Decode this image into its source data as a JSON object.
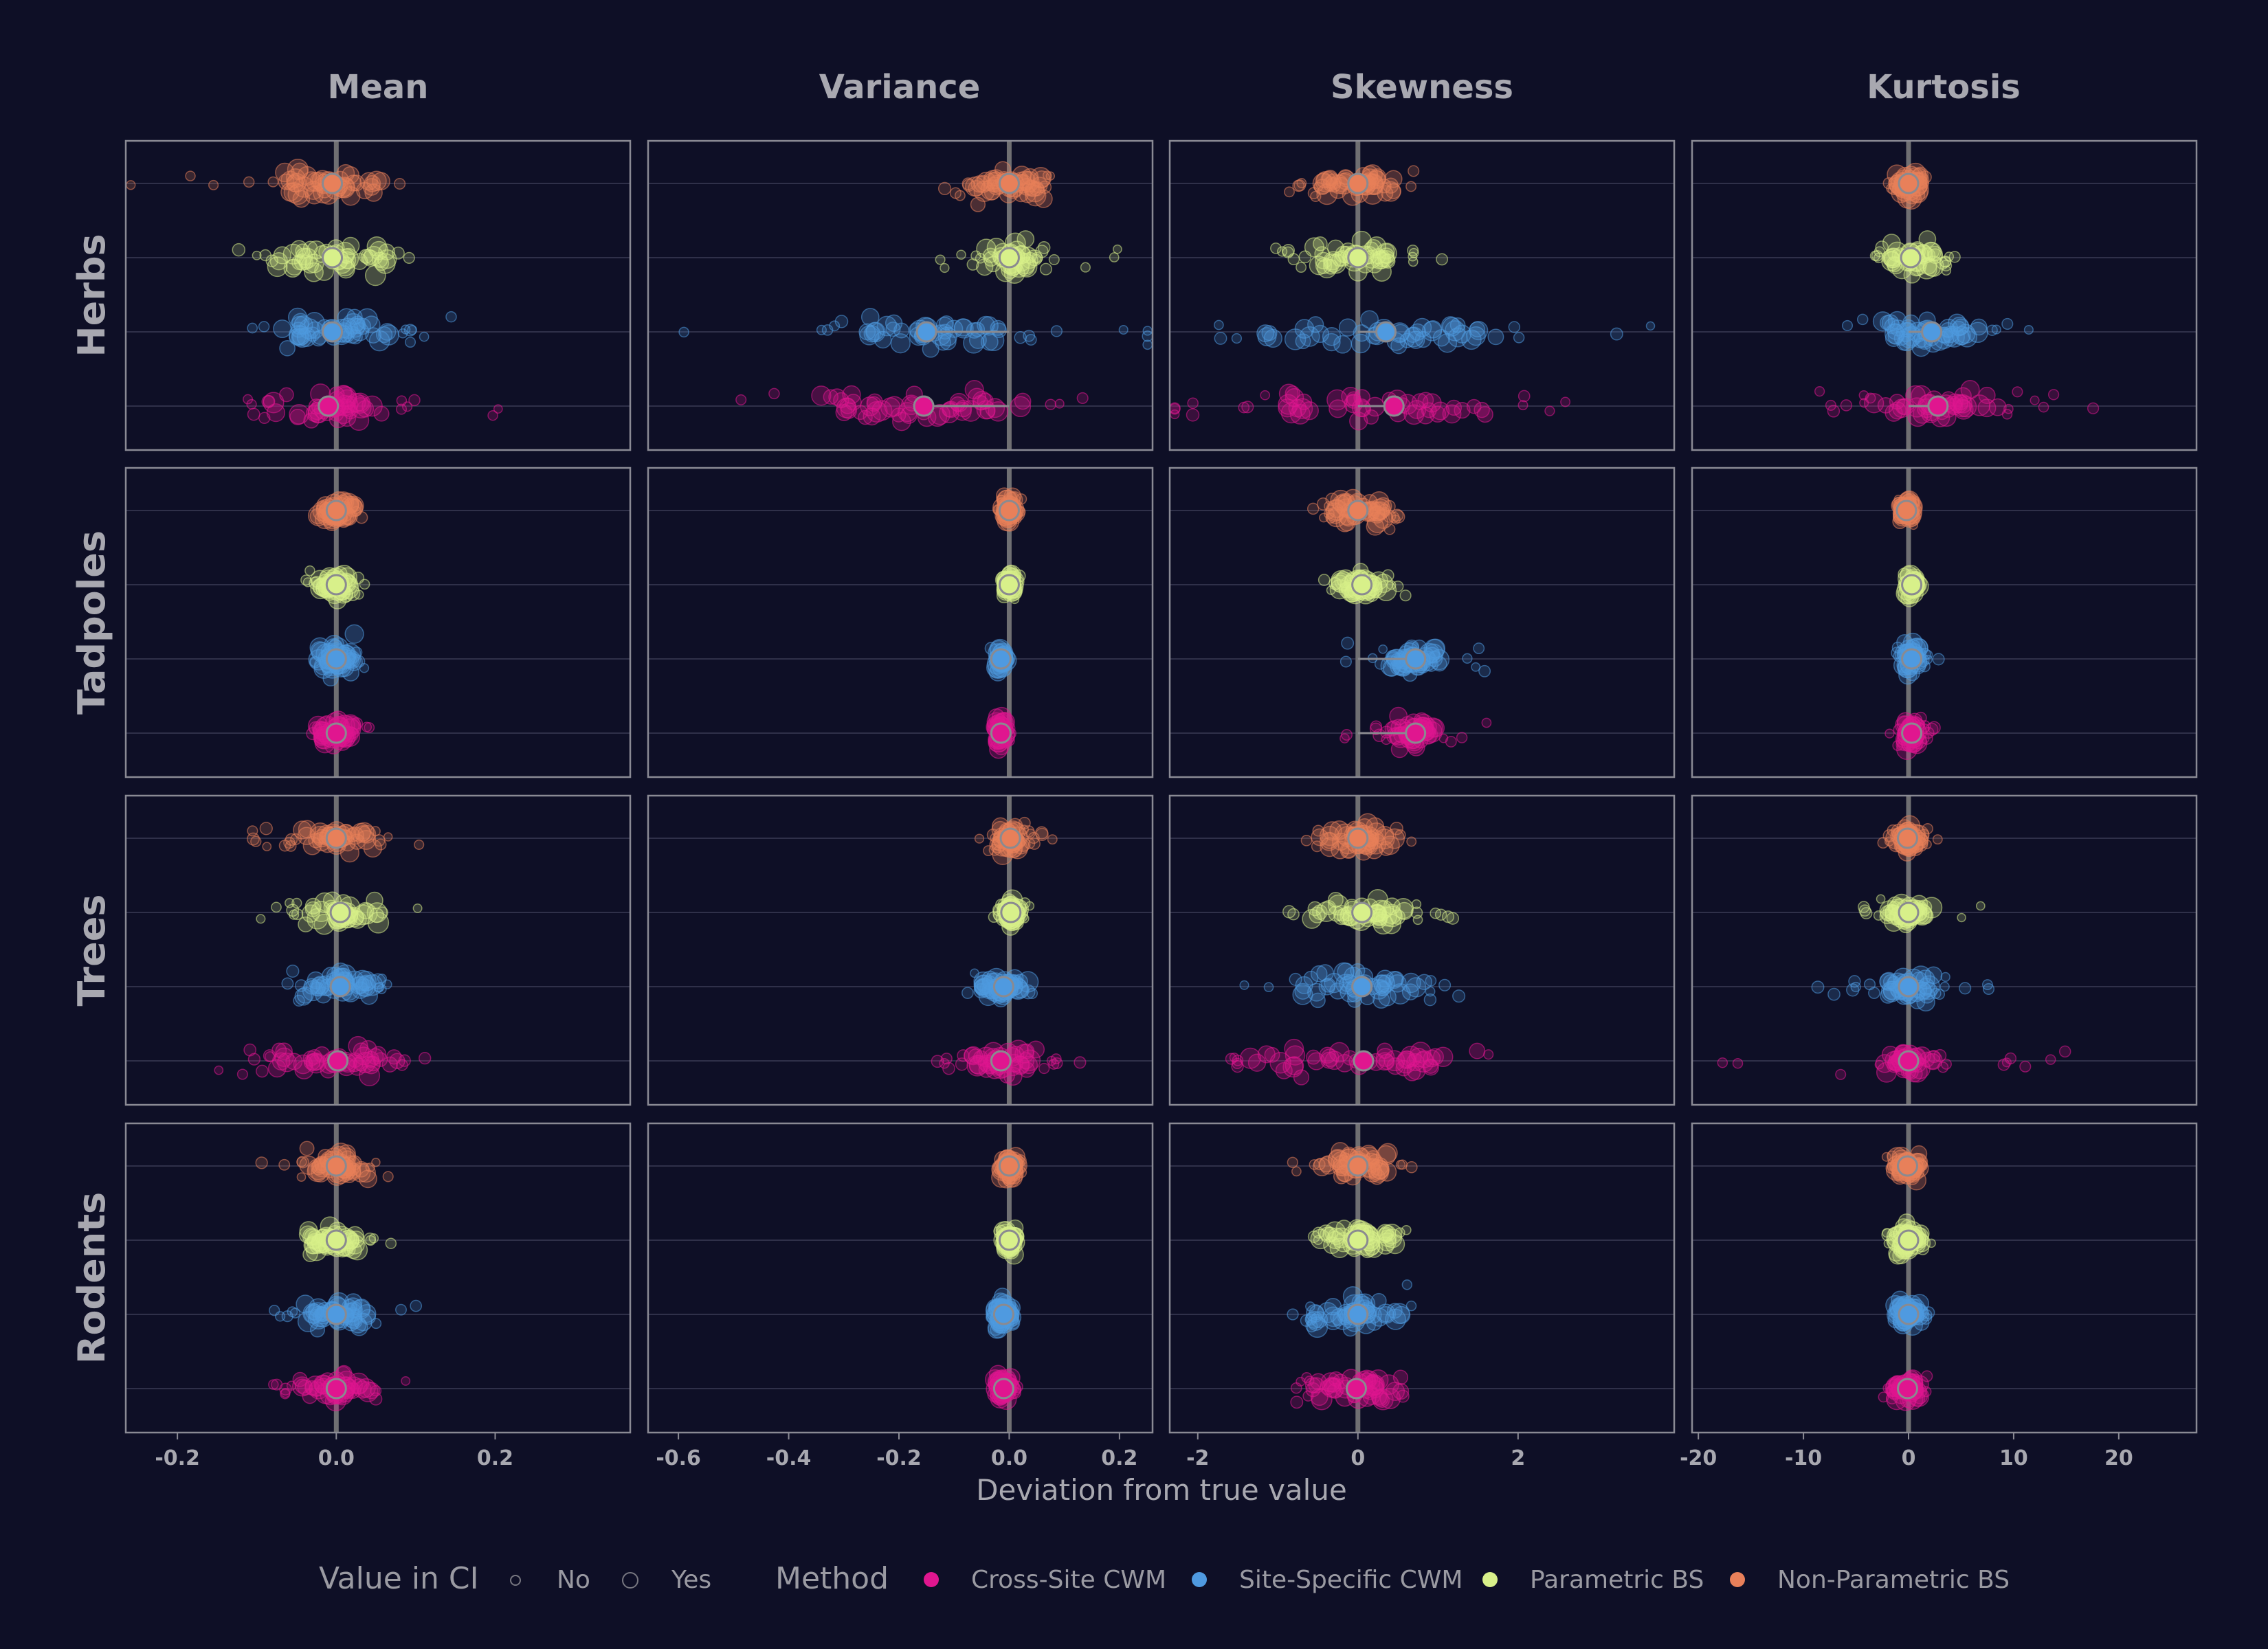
{
  "colors": {
    "background": "#0e0f26",
    "panel_border": "#8a8a94",
    "grid": "#3a3b55",
    "zero_line": "#6f6f72",
    "text": "#a8a8b0",
    "Cross-Site CWM": "#e0168f",
    "Site-Specific CWM": "#4f9ae0",
    "Parametric BS": "#d8f08a",
    "Non-Parametric BS": "#e8805a"
  },
  "chart_data": {
    "type": "scatter",
    "xlabel": "Deviation from true value",
    "columns": [
      {
        "name": "Mean",
        "xlim": [
          -0.265,
          0.37
        ],
        "ticks": [
          -0.2,
          0.0,
          0.2
        ],
        "tick_labels": [
          "-0.2",
          "0.0",
          "0.2"
        ]
      },
      {
        "name": "Variance",
        "xlim": [
          -0.655,
          0.26
        ],
        "ticks": [
          -0.6,
          -0.4,
          -0.2,
          0.0,
          0.2
        ],
        "tick_labels": [
          "-0.6",
          "-0.4",
          "-0.2",
          "0.0",
          "0.2"
        ]
      },
      {
        "name": "Skewness",
        "xlim": [
          -2.35,
          3.95
        ],
        "ticks": [
          -2,
          0,
          2
        ],
        "tick_labels": [
          "-2",
          "0",
          "2"
        ]
      },
      {
        "name": "Kurtosis",
        "xlim": [
          -20.6,
          27.4
        ],
        "ticks": [
          -20,
          -10,
          0,
          10,
          20
        ],
        "tick_labels": [
          "-20",
          "-10",
          "0",
          "10",
          "20"
        ]
      }
    ],
    "rows": [
      "Herbs",
      "Tadpoles",
      "Trees",
      "Rodents"
    ],
    "methods_top_to_bottom": [
      "Non-Parametric BS",
      "Parametric BS",
      "Site-Specific CWM",
      "Cross-Site CWM"
    ],
    "medians": {
      "Herbs": {
        "Mean": {
          "Non-Parametric BS": -0.005,
          "Parametric BS": -0.005,
          "Site-Specific CWM": -0.005,
          "Cross-Site CWM": -0.01
        },
        "Variance": {
          "Non-Parametric BS": 0.0,
          "Parametric BS": 0.0,
          "Site-Specific CWM": -0.15,
          "Cross-Site CWM": -0.155
        },
        "Skewness": {
          "Non-Parametric BS": 0.0,
          "Parametric BS": 0.0,
          "Site-Specific CWM": 0.35,
          "Cross-Site CWM": 0.45
        },
        "Kurtosis": {
          "Non-Parametric BS": 0.0,
          "Parametric BS": 0.2,
          "Site-Specific CWM": 2.2,
          "Cross-Site CWM": 2.8
        }
      },
      "Tadpoles": {
        "Mean": {
          "Non-Parametric BS": 0.0,
          "Parametric BS": 0.0,
          "Site-Specific CWM": 0.0,
          "Cross-Site CWM": 0.0
        },
        "Variance": {
          "Non-Parametric BS": 0.0,
          "Parametric BS": 0.0,
          "Site-Specific CWM": -0.015,
          "Cross-Site CWM": -0.015
        },
        "Skewness": {
          "Non-Parametric BS": 0.0,
          "Parametric BS": 0.05,
          "Site-Specific CWM": 0.72,
          "Cross-Site CWM": 0.72
        },
        "Kurtosis": {
          "Non-Parametric BS": -0.2,
          "Parametric BS": 0.3,
          "Site-Specific CWM": 0.3,
          "Cross-Site CWM": 0.3
        }
      },
      "Trees": {
        "Mean": {
          "Non-Parametric BS": 0.0,
          "Parametric BS": 0.005,
          "Site-Specific CWM": 0.005,
          "Cross-Site CWM": 0.002
        },
        "Variance": {
          "Non-Parametric BS": 0.002,
          "Parametric BS": 0.003,
          "Site-Specific CWM": -0.01,
          "Cross-Site CWM": -0.015
        },
        "Skewness": {
          "Non-Parametric BS": 0.0,
          "Parametric BS": 0.05,
          "Site-Specific CWM": 0.05,
          "Cross-Site CWM": 0.07
        },
        "Kurtosis": {
          "Non-Parametric BS": -0.1,
          "Parametric BS": 0.0,
          "Site-Specific CWM": 0.0,
          "Cross-Site CWM": 0.0
        }
      },
      "Rodents": {
        "Mean": {
          "Non-Parametric BS": 0.0,
          "Parametric BS": 0.0,
          "Site-Specific CWM": 0.0,
          "Cross-Site CWM": 0.0
        },
        "Variance": {
          "Non-Parametric BS": 0.0,
          "Parametric BS": 0.0,
          "Site-Specific CWM": -0.01,
          "Cross-Site CWM": -0.01
        },
        "Skewness": {
          "Non-Parametric BS": 0.0,
          "Parametric BS": 0.0,
          "Site-Specific CWM": 0.0,
          "Cross-Site CWM": -0.02
        },
        "Kurtosis": {
          "Non-Parametric BS": -0.1,
          "Parametric BS": 0.0,
          "Site-Specific CWM": 0.0,
          "Cross-Site CWM": -0.1
        }
      }
    },
    "spread": {
      "Herbs": {
        "Mean": {
          "Non-Parametric BS": [
            0.04,
            0.35
          ],
          "Parametric BS": [
            0.045,
            0.17
          ],
          "Site-Specific CWM": [
            0.05,
            0.17
          ],
          "Cross-Site CWM": [
            0.045,
            0.24
          ]
        },
        "Variance": {
          "Non-Parametric BS": [
            0.04,
            0.16
          ],
          "Parametric BS": [
            0.03,
            0.22
          ],
          "Site-Specific CWM": [
            0.09,
            0.58
          ],
          "Cross-Site CWM": [
            0.12,
            0.62
          ]
        },
        "Skewness": {
          "Non-Parametric BS": [
            0.3,
            0.8
          ],
          "Parametric BS": [
            0.4,
            0.9
          ],
          "Site-Specific CWM": [
            1.0,
            3.3
          ],
          "Cross-Site CWM": [
            1.0,
            3.7
          ]
        },
        "Kurtosis": {
          "Non-Parametric BS": [
            0.8,
            1.6
          ],
          "Parametric BS": [
            1.6,
            4.0
          ],
          "Site-Specific CWM": [
            3.0,
            15.0
          ],
          "Cross-Site CWM": [
            4.0,
            25.0
          ]
        }
      },
      "Tadpoles": {
        "Mean": {
          "Non-Parametric BS": [
            0.015,
            0.03
          ],
          "Parametric BS": [
            0.015,
            0.03
          ],
          "Site-Specific CWM": [
            0.015,
            0.03
          ],
          "Cross-Site CWM": [
            0.015,
            0.03
          ]
        },
        "Variance": {
          "Non-Parametric BS": [
            0.008,
            0.02
          ],
          "Parametric BS": [
            0.006,
            0.02
          ],
          "Site-Specific CWM": [
            0.006,
            0.02
          ],
          "Cross-Site CWM": [
            0.006,
            0.02
          ]
        },
        "Skewness": {
          "Non-Parametric BS": [
            0.2,
            0.5
          ],
          "Parametric BS": [
            0.2,
            0.4
          ],
          "Site-Specific CWM": [
            0.2,
            0.9
          ],
          "Cross-Site CWM": [
            0.2,
            0.9
          ]
        },
        "Kurtosis": {
          "Non-Parametric BS": [
            0.4,
            0.8
          ],
          "Parametric BS": [
            0.4,
            0.8
          ],
          "Site-Specific CWM": [
            0.5,
            3.0
          ],
          "Cross-Site CWM": [
            0.5,
            3.0
          ]
        }
      },
      "Trees": {
        "Mean": {
          "Non-Parametric BS": [
            0.03,
            0.11
          ],
          "Parametric BS": [
            0.03,
            0.11
          ],
          "Site-Specific CWM": [
            0.03,
            0.09
          ],
          "Cross-Site CWM": [
            0.05,
            0.13
          ]
        },
        "Variance": {
          "Non-Parametric BS": [
            0.015,
            0.08
          ],
          "Parametric BS": [
            0.01,
            0.04
          ],
          "Site-Specific CWM": [
            0.03,
            0.07
          ],
          "Cross-Site CWM": [
            0.04,
            0.12
          ]
        },
        "Skewness": {
          "Non-Parametric BS": [
            0.3,
            0.6
          ],
          "Parametric BS": [
            0.4,
            1.4
          ],
          "Site-Specific CWM": [
            0.5,
            1.8
          ],
          "Cross-Site CWM": [
            0.9,
            1.8
          ]
        },
        "Kurtosis": {
          "Non-Parametric BS": [
            0.8,
            3.0
          ],
          "Parametric BS": [
            1.5,
            8.0
          ],
          "Site-Specific CWM": [
            1.5,
            9.0
          ],
          "Cross-Site CWM": [
            1.5,
            19.0
          ]
        }
      },
      "Rodents": {
        "Mean": {
          "Non-Parametric BS": [
            0.025,
            0.035
          ],
          "Parametric BS": [
            0.025,
            0.035
          ],
          "Site-Specific CWM": [
            0.03,
            0.04
          ],
          "Cross-Site CWM": [
            0.03,
            0.035
          ]
        },
        "Variance": {
          "Non-Parametric BS": [
            0.01,
            0.015
          ],
          "Parametric BS": [
            0.008,
            0.012
          ],
          "Site-Specific CWM": [
            0.01,
            0.015
          ],
          "Cross-Site CWM": [
            0.01,
            0.015
          ]
        },
        "Skewness": {
          "Non-Parametric BS": [
            0.3,
            0.4
          ],
          "Parametric BS": [
            0.3,
            0.45
          ],
          "Site-Specific CWM": [
            0.35,
            0.5
          ],
          "Cross-Site CWM": [
            0.35,
            0.6
          ]
        },
        "Kurtosis": {
          "Non-Parametric BS": [
            0.8,
            1.2
          ],
          "Parametric BS": [
            0.8,
            2.2
          ],
          "Site-Specific CWM": [
            0.8,
            1.2
          ],
          "Cross-Site CWM": [
            0.8,
            1.6
          ]
        }
      }
    }
  },
  "legend": {
    "ci_title": "Value in CI",
    "ci_items": [
      "No",
      "Yes"
    ],
    "method_title": "Method",
    "method_items": [
      "Cross-Site CWM",
      "Site-Specific CWM",
      "Parametric BS",
      "Non-Parametric BS"
    ]
  }
}
